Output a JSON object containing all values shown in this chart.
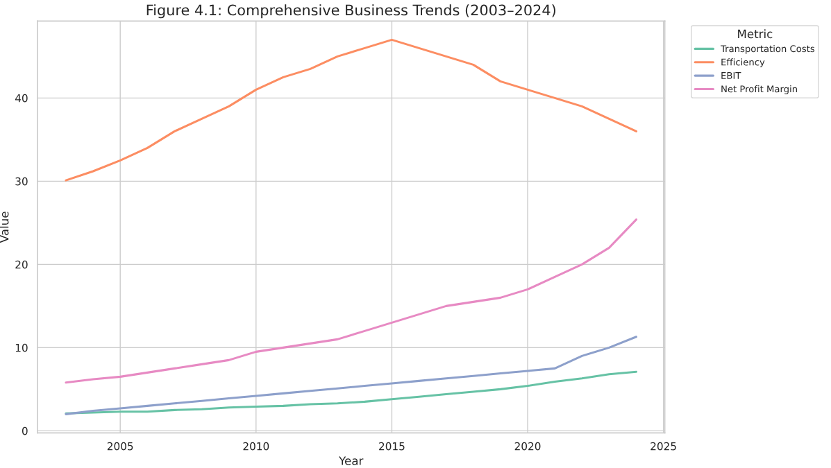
{
  "chart_data": {
    "type": "line",
    "title": "Figure 4.1: Comprehensive Business Trends (2003–2024)",
    "xlabel": "Year",
    "ylabel": "Value",
    "legend_title": "Metric",
    "legend": "top right",
    "x": [
      2003,
      2004,
      2005,
      2006,
      2007,
      2008,
      2009,
      2010,
      2011,
      2012,
      2013,
      2014,
      2015,
      2016,
      2017,
      2018,
      2019,
      2020,
      2021,
      2022,
      2023,
      2024
    ],
    "series": [
      {
        "name": "Transportation Costs",
        "color": "#66c2a5",
        "values": [
          2.1,
          2.2,
          2.3,
          2.3,
          2.5,
          2.6,
          2.8,
          2.9,
          3.0,
          3.2,
          3.3,
          3.5,
          3.8,
          4.1,
          4.4,
          4.7,
          5.0,
          5.4,
          5.9,
          6.3,
          6.8,
          7.1
        ]
      },
      {
        "name": "Efficiency",
        "color": "#fc8d62",
        "values": [
          30.1,
          31.2,
          32.5,
          34,
          36,
          37.5,
          39,
          41,
          42.5,
          43.5,
          45,
          46,
          47,
          46,
          45,
          44,
          42,
          41,
          40,
          39,
          37.5,
          36
        ]
      },
      {
        "name": "EBIT",
        "color": "#8da0cb",
        "values": [
          2.0,
          2.4,
          2.7,
          3.0,
          3.3,
          3.6,
          3.9,
          4.2,
          4.5,
          4.8,
          5.1,
          5.4,
          5.7,
          6.0,
          6.3,
          6.6,
          6.9,
          7.2,
          7.5,
          9.0,
          10.0,
          11.3
        ]
      },
      {
        "name": "Net Profit Margin",
        "color": "#e78ac3",
        "values": [
          5.8,
          6.2,
          6.5,
          7.0,
          7.5,
          8.0,
          8.5,
          9.5,
          10,
          10.5,
          11,
          12,
          13,
          14,
          15,
          15.5,
          16,
          17,
          18.5,
          20,
          22,
          25.4
        ]
      }
    ],
    "xlim": [
      2001.95,
      2025.05
    ],
    "xticks": [
      2005,
      2010,
      2015,
      2020,
      2025
    ],
    "ylim": [
      -0.25,
      49.25
    ],
    "yticks": [
      0,
      10,
      20,
      30,
      40
    ],
    "grid": true,
    "marker": "none",
    "line_style": "solid"
  }
}
